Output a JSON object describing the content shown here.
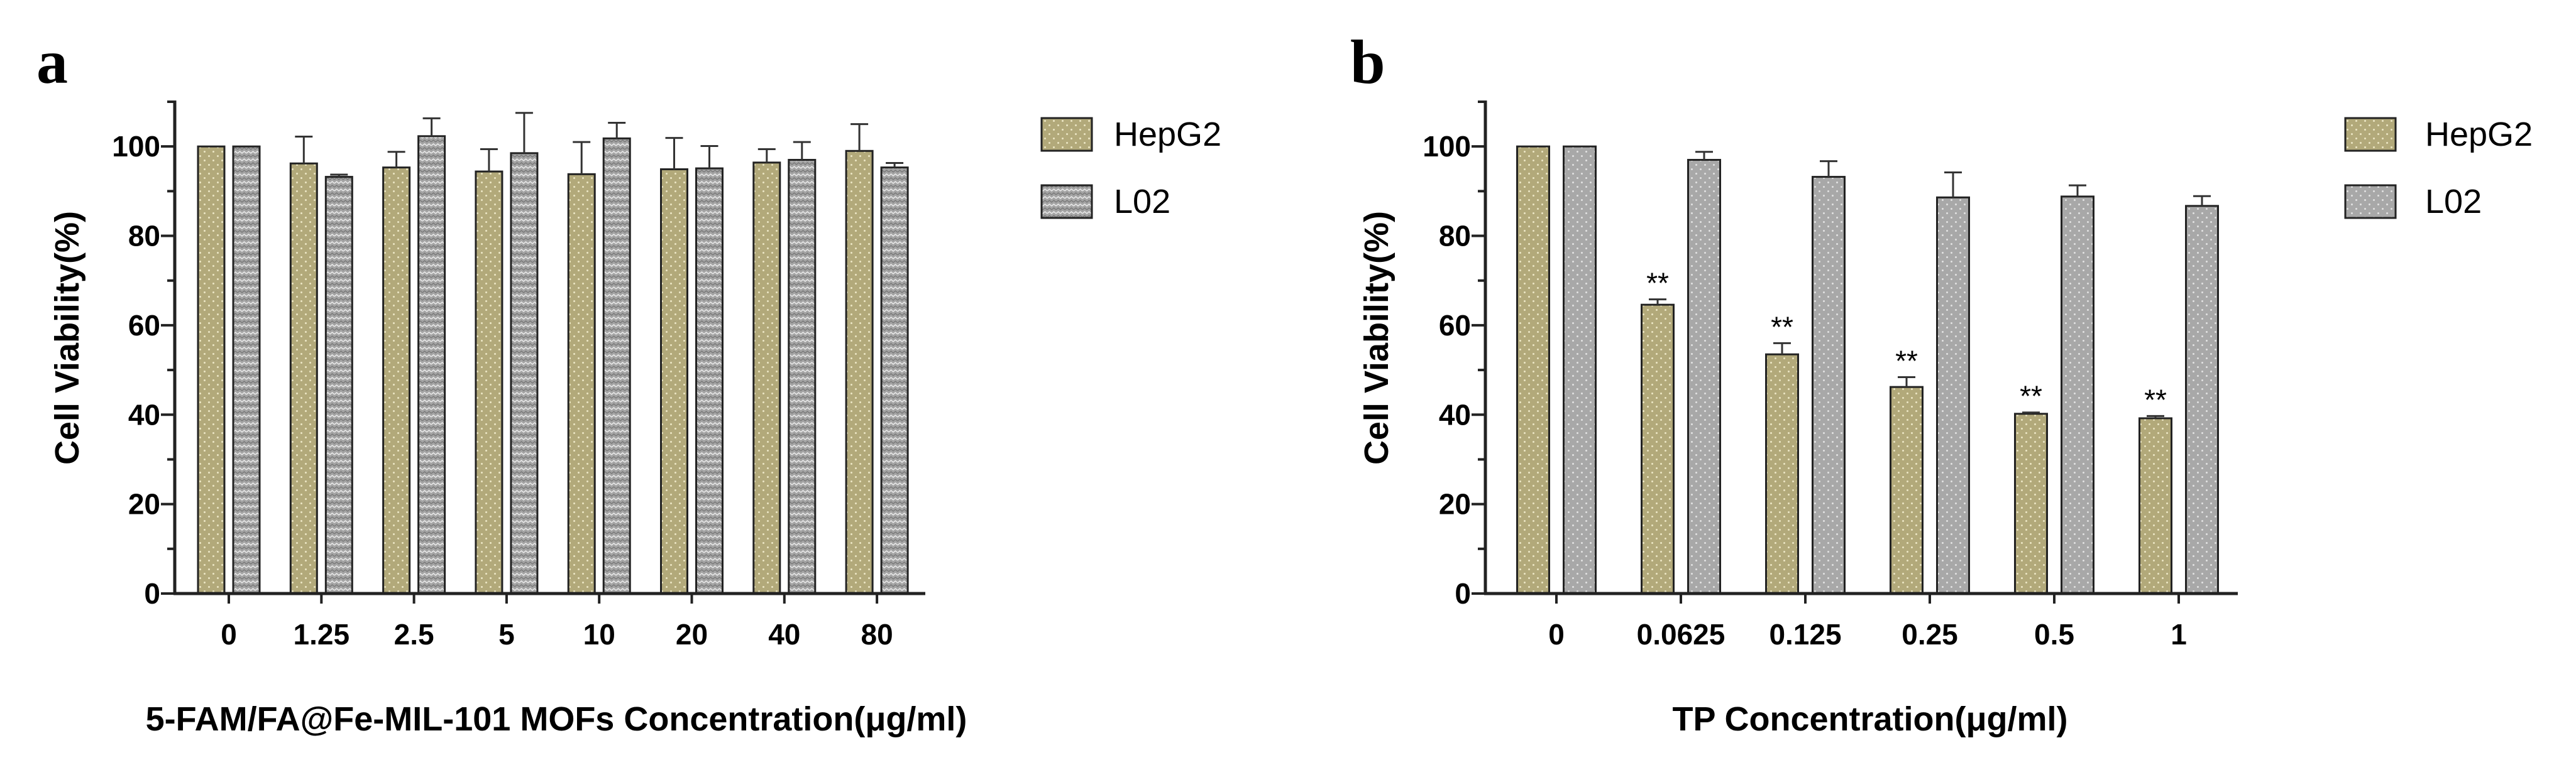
{
  "chart_data": [
    {
      "panel": "a",
      "type": "bar",
      "ylabel": "Cell Viability(%)",
      "xlabel": "5-FAM/FA@Fe-MIL-101 MOFs Concentration(μg/ml)",
      "ylim": [
        0,
        110
      ],
      "yticks": [
        0,
        20,
        40,
        60,
        80,
        100
      ],
      "categories": [
        "0",
        "1.25",
        "2.5",
        "5",
        "10",
        "20",
        "40",
        "80"
      ],
      "series": [
        {
          "name": "HepG2",
          "values": [
            100,
            96.2,
            95.3,
            94.4,
            93.8,
            94.9,
            96.4,
            99
          ],
          "errors": [
            0,
            6,
            3.5,
            5,
            7.2,
            7,
            3,
            6
          ]
        },
        {
          "name": "L02",
          "values": [
            100,
            93.2,
            102.3,
            98.5,
            101.8,
            95.1,
            97,
            95.3
          ],
          "errors": [
            0,
            0.5,
            4,
            9,
            3.5,
            5,
            4,
            1
          ]
        }
      ],
      "significance": []
    },
    {
      "panel": "b",
      "type": "bar",
      "ylabel": "Cell Viability(%)",
      "xlabel": "TP Concentration(μg/ml)",
      "ylim": [
        0,
        110
      ],
      "yticks": [
        0,
        20,
        40,
        60,
        80,
        100
      ],
      "categories": [
        "0",
        "0.0625",
        "0.125",
        "0.25",
        "0.5",
        "1"
      ],
      "series": [
        {
          "name": "HepG2",
          "values": [
            100,
            64.6,
            53.5,
            46.2,
            40.2,
            39.2
          ],
          "errors": [
            0,
            1.2,
            2.5,
            2.2,
            0.3,
            0.5
          ]
        },
        {
          "name": "L02",
          "values": [
            100,
            97,
            93.2,
            88.6,
            88.8,
            86.7
          ],
          "errors": [
            0,
            1.8,
            3.5,
            5.6,
            2.5,
            2.2
          ]
        }
      ],
      "significance": [
        "",
        "**",
        "**",
        "**",
        "**",
        "**"
      ]
    }
  ]
}
